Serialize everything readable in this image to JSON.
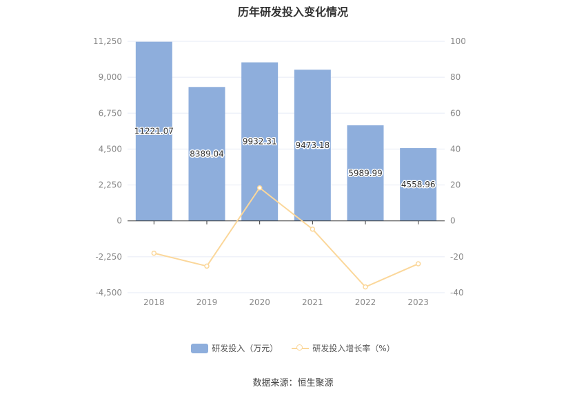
{
  "chart_data": {
    "type": "bar",
    "title": "历年研发投入变化情况",
    "categories": [
      "2018",
      "2019",
      "2020",
      "2021",
      "2022",
      "2023"
    ],
    "series": [
      {
        "name": "研发投入（万元）",
        "type": "bar",
        "axis": "left",
        "values": [
          11221.07,
          8389.04,
          9932.31,
          9473.18,
          5989.99,
          4558.96
        ],
        "labels": [
          "11221.07",
          "8389.04",
          "9932.31",
          "9473.18",
          "5989.99",
          "4558.96"
        ]
      },
      {
        "name": "研发投入增长率（%）",
        "type": "line",
        "axis": "right",
        "values": [
          -18.0,
          -25.2,
          18.4,
          -4.6,
          -36.8,
          -23.9
        ]
      }
    ],
    "y_left": {
      "min": -4500,
      "max": 11250,
      "ticks": [
        11250,
        9000,
        6750,
        4500,
        2250,
        0,
        -2250,
        -4500
      ],
      "tick_labels": [
        "11,250",
        "9,000",
        "6,750",
        "4,500",
        "2,250",
        "0",
        "-2,250",
        "-4,500"
      ]
    },
    "y_right": {
      "min": -40,
      "max": 100,
      "ticks": [
        100,
        80,
        60,
        40,
        20,
        0,
        -20,
        -40
      ],
      "tick_labels": [
        "100",
        "80",
        "60",
        "40",
        "20",
        "0",
        "-20",
        "-40"
      ]
    },
    "grid": true,
    "legend_position": "bottom",
    "colors": {
      "bar": "#8eaedc",
      "line": "#fbd79a",
      "grid": "#e6ebf5",
      "axis": "#333333",
      "tick": "#888888"
    }
  },
  "source": "数据来源：恒生聚源"
}
